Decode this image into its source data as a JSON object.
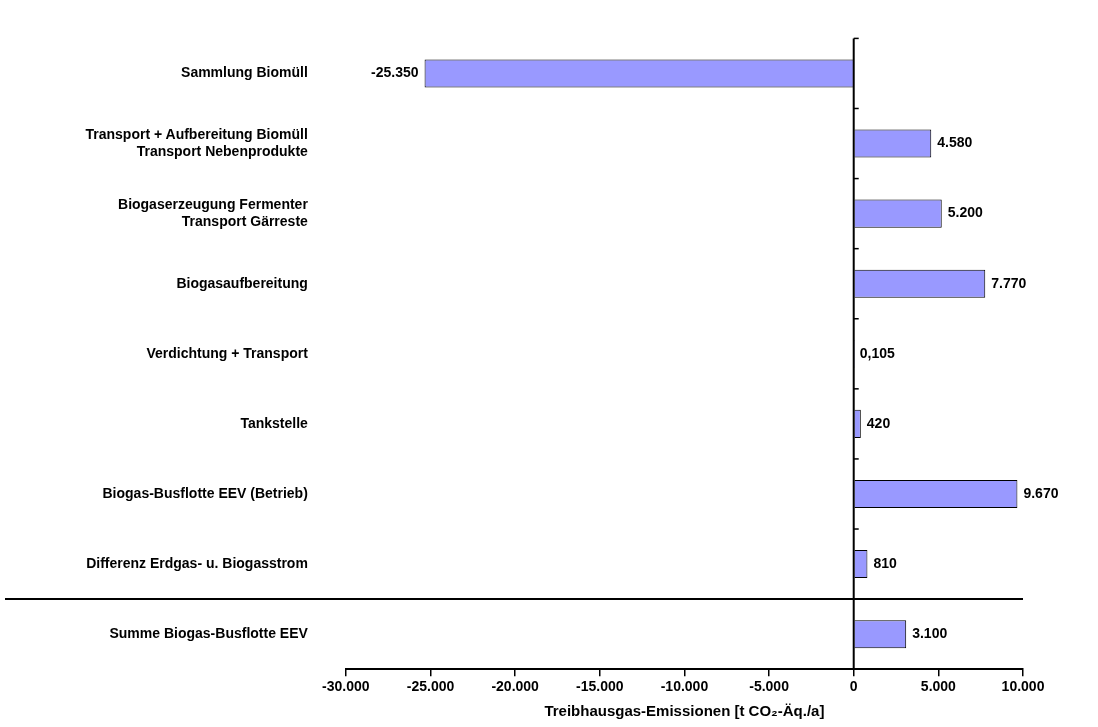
{
  "chart_data": {
    "type": "bar",
    "orientation": "horizontal",
    "xlabel": "Treibhausgas-Emissionen [t CO₂-Äq./a]",
    "categories": [
      "Sammlung Biomüll",
      "Transport + Aufbereitung Biomüll\nTransport Nebenprodukte",
      "Biogaserzeugung Fermenter\nTransport Gärreste",
      "Biogasaufbereitung",
      "Verdichtung + Transport",
      "Tankstelle",
      "Biogas-Busflotte EEV (Betrieb)",
      "Differenz Erdgas- u. Biogasstrom",
      "Summe Biogas-Busflotte EEV"
    ],
    "values": [
      -25350,
      4580,
      5200,
      7770,
      0.105,
      420,
      9670,
      810,
      3100
    ],
    "value_labels": [
      "-25.350",
      "4.580",
      "5.200",
      "7.770",
      "0,105",
      "420",
      "9.670",
      "810",
      "3.100"
    ],
    "color": "#9999ff",
    "xlim": [
      -30000,
      10000
    ],
    "xticks": [
      {
        "value": -30000,
        "label": "-30.000"
      },
      {
        "value": -25000,
        "label": "-25.000"
      },
      {
        "value": -20000,
        "label": "-20.000"
      },
      {
        "value": -15000,
        "label": "-15.000"
      },
      {
        "value": -10000,
        "label": "-10.000"
      },
      {
        "value": -5000,
        "label": "-5.000"
      },
      0,
      {
        "value": 5000,
        "label": "5.000"
      },
      {
        "value": 10000,
        "label": "10.000"
      }
    ],
    "legend": false
  }
}
